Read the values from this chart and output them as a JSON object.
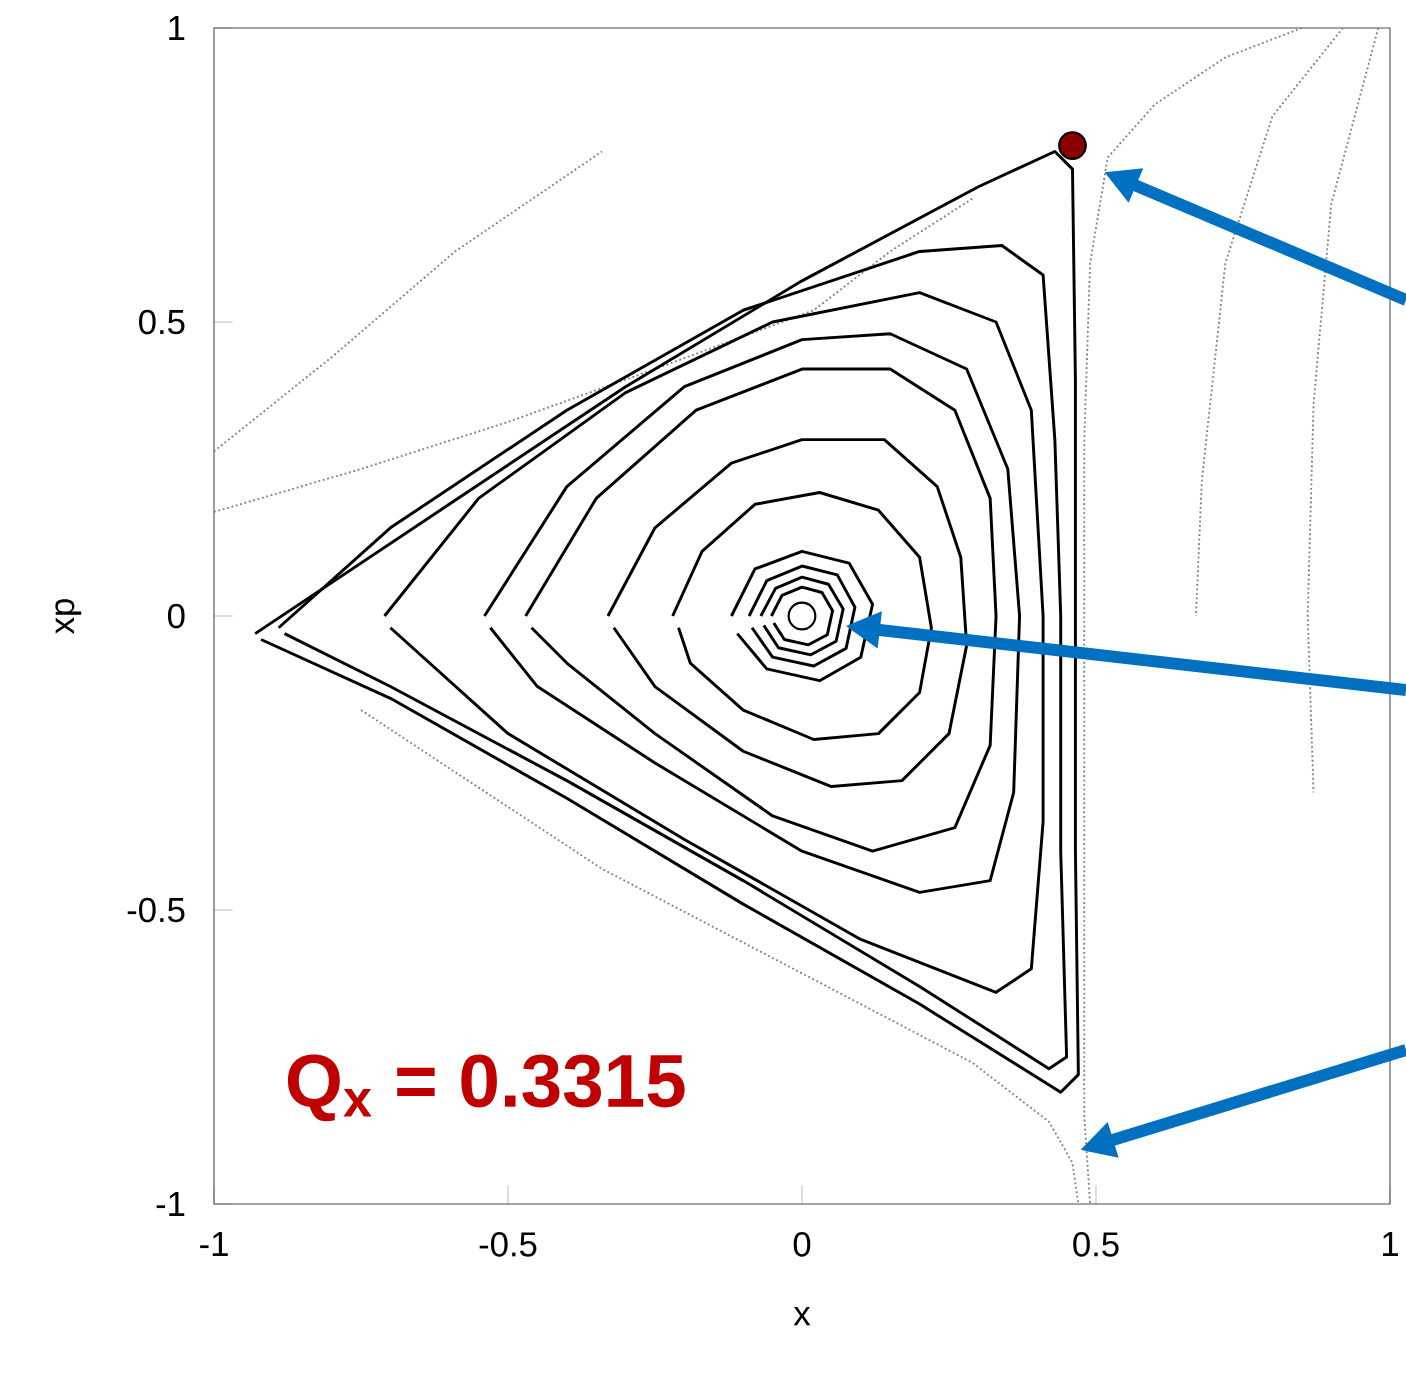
{
  "chart_data": {
    "type": "line",
    "xlabel": "x",
    "ylabel": "xp",
    "xlim": [
      -1,
      1
    ],
    "ylim": [
      -1,
      1
    ],
    "xticks": [
      -1,
      -0.5,
      0,
      0.5,
      1
    ],
    "yticks": [
      -1,
      -0.5,
      0,
      0.5,
      1
    ],
    "marker": "none",
    "annotations": [
      "Q$_{x}$ = 0.3315"
    ],
    "series": [
      {
        "color": "#808080",
        "line_style": "dotted",
        "x": [
          -1,
          -0.75,
          -0.5,
          -0.25,
          0.02,
          0.15,
          0.29
        ],
        "values": [
          0.177,
          0.25,
          0.33,
          0.42,
          0.52,
          0.62,
          0.71
        ]
      },
      {
        "color": "#808080",
        "line_style": "dotted",
        "x": [
          -1,
          -0.8,
          -0.59,
          -0.34
        ],
        "values": [
          0.28,
          0.44,
          0.62,
          0.79
        ]
      },
      {
        "color": "#808080",
        "line_style": "dotted",
        "x": [
          -0.75,
          -0.34,
          0.1,
          0.29,
          0.42,
          0.46,
          0.47
        ],
        "values": [
          -0.16,
          -0.43,
          -0.66,
          -0.76,
          -0.86,
          -0.93,
          -1
        ]
      },
      {
        "color": "#808080",
        "line_style": "dotted",
        "x": [
          0.85,
          0.72,
          0.6,
          0.52,
          0.49,
          0.48,
          0.48,
          0.48,
          0.48,
          0.48,
          0.49
        ],
        "values": [
          1,
          0.95,
          0.87,
          0.78,
          0.6,
          0.3,
          0,
          -0.4,
          -0.7,
          -0.85,
          -1
        ]
      },
      {
        "color": "#808080",
        "line_style": "dotted",
        "x": [
          0.92,
          0.8,
          0.72,
          0.68,
          0.67
        ],
        "values": [
          1,
          0.85,
          0.6,
          0.23,
          0
        ]
      },
      {
        "color": "#808080",
        "line_style": "dotted",
        "x": [
          0.98,
          0.9,
          0.87,
          0.86,
          0.87
        ],
        "values": [
          1,
          0.7,
          0.36,
          0,
          -0.3
        ]
      },
      {
        "color": "#000000",
        "x": [
          -0.93,
          -0.6,
          -0.3,
          0,
          0.3,
          0.43,
          0.46,
          0.465,
          0.465,
          0.47,
          0.44,
          0.2,
          -0.1,
          -0.4,
          -0.7,
          -0.92
        ],
        "values": [
          -0.03,
          0.19,
          0.39,
          0.57,
          0.73,
          0.79,
          0.76,
          0.4,
          -0.4,
          -0.78,
          -0.81,
          -0.66,
          -0.49,
          -0.31,
          -0.14,
          -0.04
        ]
      },
      {
        "color": "#000000",
        "x": [
          -0.89,
          -0.7,
          -0.4,
          -0.1,
          0.2,
          0.34,
          0.41,
          0.43,
          0.44,
          0.44,
          0.45,
          0.42,
          0.2,
          -0.1,
          -0.4,
          -0.7,
          -0.88
        ],
        "values": [
          -0.02,
          0.15,
          0.35,
          0.52,
          0.62,
          0.63,
          0.58,
          0.3,
          0,
          -0.4,
          -0.75,
          -0.77,
          -0.63,
          -0.45,
          -0.28,
          -0.12,
          -0.03
        ]
      },
      {
        "color": "#000000",
        "x": [
          -0.71,
          -0.55,
          -0.3,
          -0.05,
          0.2,
          0.33,
          0.39,
          0.41,
          0.41,
          0.39,
          0.33,
          0.1,
          -0.2,
          -0.5,
          -0.7
        ],
        "values": [
          0,
          0.2,
          0.38,
          0.5,
          0.55,
          0.5,
          0.35,
          0,
          -0.35,
          -0.6,
          -0.64,
          -0.55,
          -0.38,
          -0.2,
          -0.02
        ]
      },
      {
        "color": "#000000",
        "x": [
          -0.54,
          -0.4,
          -0.2,
          0,
          0.15,
          0.28,
          0.35,
          0.37,
          0.36,
          0.32,
          0.2,
          0,
          -0.25,
          -0.45,
          -0.53
        ],
        "values": [
          0,
          0.22,
          0.39,
          0.47,
          0.48,
          0.42,
          0.25,
          0,
          -0.3,
          -0.45,
          -0.47,
          -0.4,
          -0.25,
          -0.12,
          -0.02
        ]
      },
      {
        "color": "#000000",
        "x": [
          -0.47,
          -0.35,
          -0.18,
          0,
          0.15,
          0.26,
          0.32,
          0.33,
          0.32,
          0.26,
          0.12,
          -0.05,
          -0.25,
          -0.4,
          -0.46
        ],
        "values": [
          0,
          0.2,
          0.35,
          0.42,
          0.42,
          0.35,
          0.2,
          0,
          -0.22,
          -0.36,
          -0.4,
          -0.34,
          -0.2,
          -0.08,
          -0.02
        ]
      },
      {
        "color": "#000000",
        "x": [
          -0.33,
          -0.25,
          -0.12,
          0,
          0.14,
          0.23,
          0.27,
          0.28,
          0.25,
          0.17,
          0.05,
          -0.1,
          -0.25,
          -0.32
        ],
        "values": [
          0,
          0.15,
          0.26,
          0.3,
          0.3,
          0.22,
          0.1,
          -0.05,
          -0.2,
          -0.28,
          -0.29,
          -0.23,
          -0.12,
          -0.02
        ]
      },
      {
        "color": "#000000",
        "x": [
          -0.22,
          -0.17,
          -0.08,
          0.03,
          0.13,
          0.2,
          0.22,
          0.2,
          0.13,
          0.02,
          -0.1,
          -0.19,
          -0.21
        ],
        "values": [
          0,
          0.11,
          0.19,
          0.21,
          0.18,
          0.1,
          -0.02,
          -0.13,
          -0.2,
          -0.21,
          -0.16,
          -0.08,
          -0.02
        ]
      },
      {
        "color": "#000000",
        "x": [
          -0.12,
          -0.08,
          0,
          0.08,
          0.12,
          0.1,
          0.03,
          -0.06,
          -0.11
        ],
        "values": [
          0,
          0.08,
          0.11,
          0.09,
          0.02,
          -0.07,
          -0.11,
          -0.09,
          -0.03
        ]
      },
      {
        "color": "#000000",
        "x": [
          -0.09,
          -0.06,
          0,
          0.06,
          0.09,
          0.075,
          0.02,
          -0.05,
          -0.085
        ],
        "values": [
          0,
          0.06,
          0.085,
          0.07,
          0.015,
          -0.055,
          -0.085,
          -0.07,
          -0.02
        ]
      },
      {
        "color": "#000000",
        "x": [
          -0.07,
          -0.045,
          0,
          0.045,
          0.07,
          0.058,
          0.015,
          -0.04,
          -0.065
        ],
        "values": [
          0,
          0.047,
          0.066,
          0.054,
          0.012,
          -0.043,
          -0.066,
          -0.054,
          -0.016
        ]
      },
      {
        "color": "#000000",
        "x": [
          -0.052,
          -0.034,
          0,
          0.034,
          0.052,
          0.043,
          0.011,
          -0.03,
          -0.048
        ],
        "values": [
          0,
          0.035,
          0.049,
          0.04,
          0.009,
          -0.032,
          -0.049,
          -0.04,
          -0.012
        ]
      },
      {
        "type": "scatter",
        "marker": "circle",
        "color": "#ffffff",
        "x": [
          0
        ],
        "values": [
          0
        ]
      },
      {
        "type": "scatter",
        "marker": "circle",
        "color": "#8b0000",
        "x": [
          0.46
        ],
        "values": [
          0.8
        ]
      }
    ]
  }
}
